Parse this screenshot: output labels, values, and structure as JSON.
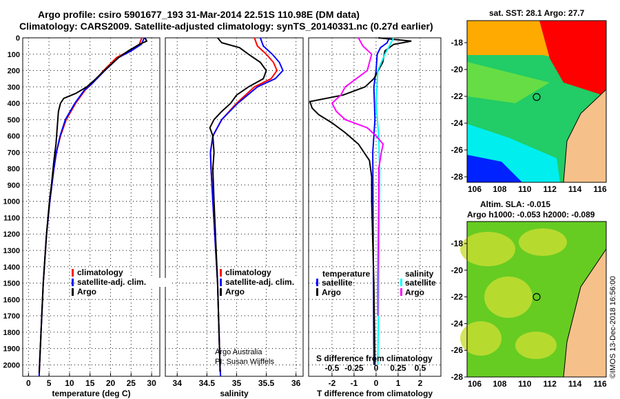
{
  "title_line1": "Argo profile: csiro 5901677_193 31-Mar-2014 22.51S 110.98E (DM data)",
  "title_line2": "Climatology: CARS2009. Satellite-adjusted climatology: synTS_20140331.nc (0.27d earlier)",
  "colors": {
    "climatology": "#ff0000",
    "satellite": "#0000ff",
    "argo": "#000000",
    "sal_satellite": "#00ffff",
    "sal_argo": "#ff00ff"
  },
  "chart_data": [
    {
      "type": "line",
      "id": "temperature",
      "xlabel": "temperature (deg C)",
      "ylabel": "depth",
      "xlim": [
        -1.4,
        32
      ],
      "ylim": [
        2070,
        0
      ],
      "xticks": [
        0,
        5,
        10,
        15,
        20,
        25,
        30
      ],
      "yticks": [
        0,
        100,
        200,
        300,
        400,
        500,
        600,
        700,
        800,
        900,
        1000,
        1100,
        1200,
        1300,
        1400,
        1500,
        1600,
        1700,
        1800,
        1900,
        2000
      ],
      "legend": [
        "climatology",
        "satellite-adj. clim.",
        "Argo"
      ],
      "series": [
        {
          "name": "climatology",
          "color": "#ff0000",
          "points": [
            [
              0,
              27.6
            ],
            [
              40,
              27
            ],
            [
              80,
              24.5
            ],
            [
              120,
              21.5
            ],
            [
              200,
              18.3
            ],
            [
              280,
              15.5
            ],
            [
              320,
              13.8
            ],
            [
              400,
              11.5
            ],
            [
              500,
              9.2
            ],
            [
              600,
              7.8
            ],
            [
              700,
              6.8
            ],
            [
              800,
              6.2
            ],
            [
              1000,
              5.2
            ],
            [
              1200,
              4.4
            ],
            [
              1500,
              3.6
            ],
            [
              2000,
              2.7
            ],
            [
              2070,
              2.6
            ]
          ]
        },
        {
          "name": "satellite-adj. clim.",
          "color": "#0000ff",
          "points": [
            [
              0,
              28.2
            ],
            [
              40,
              27.5
            ],
            [
              80,
              25
            ],
            [
              120,
              22
            ],
            [
              200,
              18.6
            ],
            [
              280,
              15.5
            ],
            [
              320,
              13.6
            ],
            [
              400,
              11.3
            ],
            [
              500,
              9
            ],
            [
              600,
              7.7
            ],
            [
              700,
              6.8
            ],
            [
              800,
              6.2
            ],
            [
              1000,
              5.2
            ],
            [
              1200,
              4.4
            ],
            [
              1500,
              3.6
            ],
            [
              2000,
              2.7
            ],
            [
              2070,
              2.6
            ]
          ]
        },
        {
          "name": "Argo",
          "color": "#000000",
          "points": [
            [
              0,
              28.4
            ],
            [
              20,
              28.8
            ],
            [
              40,
              27
            ],
            [
              80,
              24.3
            ],
            [
              120,
              22
            ],
            [
              200,
              18.5
            ],
            [
              260,
              16
            ],
            [
              300,
              14.2
            ],
            [
              340,
              11.5
            ],
            [
              370,
              8.6
            ],
            [
              400,
              7.8
            ],
            [
              450,
              7.3
            ],
            [
              550,
              7
            ],
            [
              650,
              6.7
            ],
            [
              750,
              6.2
            ],
            [
              900,
              5.6
            ],
            [
              1000,
              5.1
            ],
            [
              1200,
              4.4
            ],
            [
              1500,
              3.6
            ],
            [
              2000,
              2.7
            ],
            [
              2050,
              2.6
            ]
          ]
        }
      ]
    },
    {
      "type": "line",
      "id": "salinity",
      "xlabel": "salinity",
      "xlim": [
        33.8,
        36.12
      ],
      "ylim": [
        2070,
        0
      ],
      "xticks": [
        34,
        34.5,
        35,
        35.5,
        36
      ],
      "legend": [
        "climatology",
        "satellite-adj. clim.",
        "Argo"
      ],
      "credit": [
        "Argo Australia",
        "PI: Susan Wijffels"
      ],
      "series": [
        {
          "name": "climatology",
          "color": "#ff0000",
          "points": [
            [
              0,
              35.3
            ],
            [
              50,
              35.35
            ],
            [
              100,
              35.5
            ],
            [
              150,
              35.62
            ],
            [
              200,
              35.68
            ],
            [
              250,
              35.58
            ],
            [
              300,
              35.3
            ],
            [
              400,
              35.0
            ],
            [
              500,
              34.75
            ],
            [
              600,
              34.6
            ],
            [
              700,
              34.56
            ],
            [
              800,
              34.57
            ],
            [
              1000,
              34.6
            ],
            [
              1500,
              34.68
            ],
            [
              2000,
              34.72
            ],
            [
              2070,
              34.73
            ]
          ]
        },
        {
          "name": "satellite-adj. clim.",
          "color": "#0000ff",
          "points": [
            [
              0,
              35.4
            ],
            [
              50,
              35.45
            ],
            [
              100,
              35.6
            ],
            [
              150,
              35.72
            ],
            [
              200,
              35.78
            ],
            [
              250,
              35.65
            ],
            [
              300,
              35.35
            ],
            [
              400,
              35.02
            ],
            [
              500,
              34.75
            ],
            [
              600,
              34.6
            ],
            [
              700,
              34.56
            ],
            [
              800,
              34.57
            ],
            [
              1000,
              34.6
            ],
            [
              1500,
              34.68
            ],
            [
              2000,
              34.72
            ],
            [
              2070,
              34.73
            ]
          ]
        },
        {
          "name": "Argo",
          "color": "#000000",
          "points": [
            [
              0,
              34.68
            ],
            [
              30,
              34.75
            ],
            [
              60,
              35.05
            ],
            [
              100,
              35.2
            ],
            [
              150,
              35.4
            ],
            [
              200,
              35.5
            ],
            [
              250,
              35.45
            ],
            [
              300,
              35.2
            ],
            [
              350,
              35.0
            ],
            [
              400,
              34.9
            ],
            [
              450,
              34.75
            ],
            [
              500,
              34.62
            ],
            [
              550,
              34.55
            ],
            [
              600,
              34.6
            ],
            [
              700,
              34.62
            ],
            [
              800,
              34.6
            ],
            [
              1000,
              34.62
            ],
            [
              1500,
              34.68
            ],
            [
              2000,
              34.72
            ],
            [
              2040,
              34.72
            ]
          ]
        }
      ]
    },
    {
      "type": "line",
      "id": "difference",
      "xlabel": "T difference from climatology",
      "x2label": "S difference from climatology",
      "xlim": [
        -3.06,
        2.94
      ],
      "ylim": [
        2070,
        0
      ],
      "xticks": [
        -2,
        -1,
        0,
        1,
        2
      ],
      "x2ticks": [
        -0.5,
        -0.25,
        0,
        0.25,
        0.5
      ],
      "legend_temperature": {
        "title": "temperature",
        "items": [
          "satellite",
          "Argo"
        ]
      },
      "legend_salinity": {
        "title": "salinity",
        "items": [
          "satellite",
          "Argo"
        ]
      },
      "series": [
        {
          "name": "T satellite",
          "color": "#0000ff",
          "axis": "T",
          "points": [
            [
              0,
              0.6
            ],
            [
              30,
              0.5
            ],
            [
              60,
              0.2
            ],
            [
              100,
              0.05
            ],
            [
              200,
              0.0
            ],
            [
              300,
              -0.1
            ],
            [
              500,
              -0.05
            ],
            [
              600,
              -0.1
            ],
            [
              700,
              -0.15
            ],
            [
              1500,
              -0.12
            ],
            [
              2000,
              -0.1
            ]
          ]
        },
        {
          "name": "T Argo",
          "color": "#000000",
          "axis": "T",
          "points": [
            [
              0,
              0.1
            ],
            [
              20,
              1.6
            ],
            [
              40,
              0.8
            ],
            [
              80,
              0.4
            ],
            [
              150,
              0.3
            ],
            [
              250,
              -0.1
            ],
            [
              300,
              -0.5
            ],
            [
              350,
              -1.5
            ],
            [
              390,
              -3.0
            ],
            [
              430,
              -2.9
            ],
            [
              470,
              -2.6
            ],
            [
              520,
              -2.0
            ],
            [
              580,
              -1.4
            ],
            [
              650,
              -0.8
            ],
            [
              750,
              -0.3
            ],
            [
              850,
              -0.2
            ],
            [
              1000,
              -0.2
            ],
            [
              1500,
              -0.1
            ],
            [
              2000,
              -0.05
            ]
          ]
        },
        {
          "name": "S satellite",
          "color": "#00ffff",
          "axis": "S",
          "points": [
            [
              0,
              0.2
            ],
            [
              50,
              0.15
            ],
            [
              100,
              0.1
            ],
            [
              200,
              0.02
            ],
            [
              400,
              0.0
            ],
            [
              600,
              0.03
            ],
            [
              800,
              0.04
            ],
            [
              1500,
              0.03
            ],
            [
              2000,
              0.02
            ]
          ]
        },
        {
          "name": "S Argo",
          "color": "#ff00ff",
          "axis": "S",
          "points": [
            [
              0,
              -0.2
            ],
            [
              50,
              -0.15
            ],
            [
              100,
              -0.05
            ],
            [
              200,
              -0.1
            ],
            [
              300,
              -0.35
            ],
            [
              350,
              -0.4
            ],
            [
              400,
              -0.5
            ],
            [
              450,
              -0.45
            ],
            [
              500,
              -0.35
            ],
            [
              550,
              -0.1
            ],
            [
              600,
              0.0
            ],
            [
              650,
              0.08
            ],
            [
              700,
              0.06
            ],
            [
              800,
              0.03
            ],
            [
              1000,
              0.03
            ],
            [
              1500,
              0.02
            ],
            [
              1700,
              0.02
            ]
          ]
        }
      ]
    }
  ],
  "map_sst": {
    "title": "sat. SST: 28.1 Argo: 27.7",
    "xticks": [
      "106",
      "108",
      "110",
      "112",
      "114",
      "116"
    ],
    "yticks": [
      "-18",
      "-20",
      "-22",
      "-24",
      "-26",
      "-28"
    ]
  },
  "map_sla": {
    "title1": "Altim. SLA: -0.015",
    "title2": "Argo h1000: -0.053 h2000: -0.089",
    "xticks": [
      "106",
      "108",
      "110",
      "112",
      "114",
      "116"
    ],
    "yticks": [
      "-18",
      "-20",
      "-22",
      "-24",
      "-26",
      "-28"
    ]
  },
  "footer": "©IMOS 13-Dec-2018 16:56:00"
}
